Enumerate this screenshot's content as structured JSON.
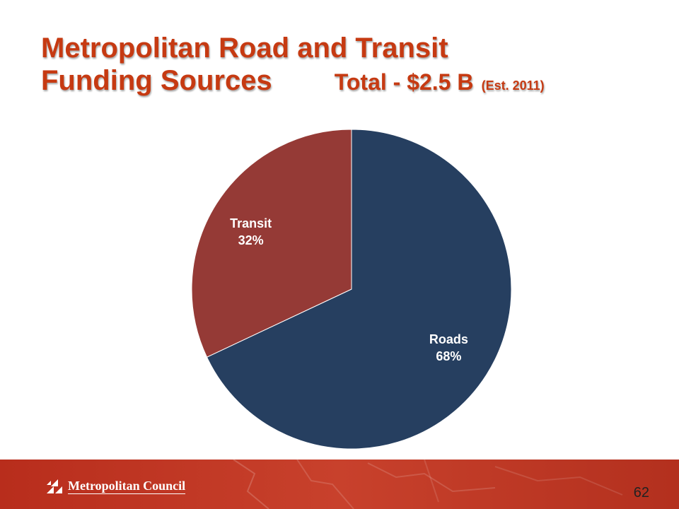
{
  "title": {
    "line1": "Metropolitan Road and Transit",
    "line2": "Funding Sources",
    "total": "Total - $2.5 B",
    "est": "(Est. 2011)"
  },
  "colors": {
    "title": "#c63a12",
    "roads": "#263f60",
    "transit": "#953a36",
    "footer": "#c0392b"
  },
  "chart_data": {
    "type": "pie",
    "categories": [
      "Roads",
      "Transit"
    ],
    "values": [
      68,
      32
    ],
    "labels": [
      "Roads\n68%",
      "Transit\n32%"
    ]
  },
  "footer": {
    "logo_text": "Metropolitan Council",
    "page_number": "62"
  }
}
